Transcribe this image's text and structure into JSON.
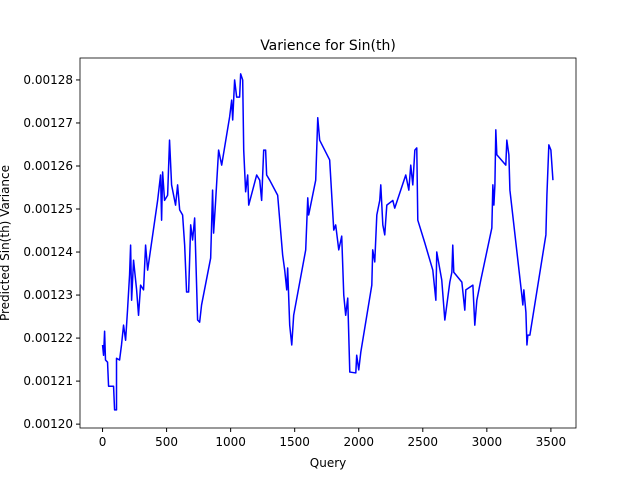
{
  "chart_data": {
    "type": "line",
    "title": "Varience for Sin(th)",
    "x_label": "Query",
    "y_label": "Predicted Sin(th) Variance",
    "xlim": [
      -176,
      3696
    ],
    "ylim": [
      0.0011991,
      0.0012851
    ],
    "xticks": [
      0,
      500,
      1000,
      1500,
      2000,
      2500,
      3000,
      3500
    ],
    "yticks": [
      {
        "value": 0.0012,
        "label": "0.00120"
      },
      {
        "value": 0.00121,
        "label": "0.00121"
      },
      {
        "value": 0.00122,
        "label": "0.00122"
      },
      {
        "value": 0.00123,
        "label": "0.00123"
      },
      {
        "value": 0.00124,
        "label": "0.00124"
      },
      {
        "value": 0.00125,
        "label": "0.00125"
      },
      {
        "value": 0.00126,
        "label": "0.00126"
      },
      {
        "value": 0.00127,
        "label": "0.00127"
      },
      {
        "value": 0.00128,
        "label": "0.00128"
      }
    ],
    "grid": false,
    "x": [
      0,
      8,
      16,
      23,
      39,
      47,
      86,
      94,
      109,
      109,
      133,
      148,
      164,
      180,
      195,
      211,
      219,
      227,
      242,
      266,
      281,
      297,
      320,
      336,
      352,
      430,
      453,
      461,
      469,
      484,
      508,
      523,
      539,
      570,
      586,
      602,
      625,
      641,
      656,
      672,
      688,
      703,
      719,
      742,
      758,
      773,
      844,
      859,
      867,
      883,
      906,
      930,
      992,
      1008,
      1016,
      1031,
      1047,
      1070,
      1078,
      1094,
      1102,
      1117,
      1133,
      1141,
      1203,
      1227,
      1242,
      1258,
      1273,
      1281,
      1305,
      1367,
      1406,
      1422,
      1438,
      1445,
      1461,
      1477,
      1492,
      1586,
      1602,
      1609,
      1664,
      1680,
      1695,
      1773,
      1805,
      1820,
      1844,
      1867,
      1883,
      1898,
      1914,
      1930,
      1977,
      1984,
      2000,
      2016,
      2102,
      2109,
      2125,
      2141,
      2164,
      2172,
      2188,
      2203,
      2219,
      2266,
      2281,
      2367,
      2391,
      2406,
      2422,
      2438,
      2453,
      2461,
      2516,
      2578,
      2602,
      2609,
      2648,
      2672,
      2711,
      2727,
      2734,
      2742,
      2805,
      2828,
      2836,
      2891,
      2906,
      2922,
      2953,
      3039,
      3047,
      3055,
      3063,
      3070,
      3078,
      3148,
      3156,
      3172,
      3180,
      3273,
      3281,
      3289,
      3305,
      3313,
      3320,
      3336,
      3461,
      3469,
      3484,
      3500,
      3516
    ],
    "series": [
      {
        "color": "#0000ff",
        "values": [
          0.0012184,
          0.001216,
          0.0012216,
          0.0012149,
          0.0012144,
          0.0012088,
          0.0012088,
          0.0012033,
          0.0012033,
          0.0012153,
          0.0012149,
          0.0012184,
          0.001223,
          0.0012195,
          0.0012265,
          0.0012347,
          0.0012416,
          0.0012288,
          0.0012381,
          0.0012312,
          0.0012253,
          0.0012323,
          0.0012312,
          0.0012416,
          0.0012358,
          0.001252,
          0.0012579,
          0.0012474,
          0.0012586,
          0.001252,
          0.0012532,
          0.001266,
          0.0012556,
          0.0012509,
          0.0012556,
          0.0012498,
          0.0012486,
          0.0012416,
          0.0012307,
          0.0012307,
          0.0012463,
          0.0012428,
          0.0012479,
          0.0012242,
          0.0012237,
          0.0012277,
          0.0012386,
          0.0012544,
          0.0012444,
          0.001252,
          0.0012637,
          0.0012602,
          0.0012714,
          0.0012753,
          0.0012707,
          0.00128,
          0.001276,
          0.001276,
          0.0012814,
          0.00128,
          0.0012637,
          0.001254,
          0.0012579,
          0.0012509,
          0.0012579,
          0.0012567,
          0.001252,
          0.0012637,
          0.0012637,
          0.0012579,
          0.0012567,
          0.0012532,
          0.0012393,
          0.0012358,
          0.0012312,
          0.0012363,
          0.001223,
          0.0012184,
          0.0012253,
          0.0012405,
          0.0012526,
          0.0012486,
          0.0012567,
          0.0012712,
          0.001266,
          0.0012614,
          0.0012451,
          0.0012463,
          0.0012405,
          0.0012437,
          0.00123,
          0.0012253,
          0.0012293,
          0.0012121,
          0.0012119,
          0.001216,
          0.0012126,
          0.0012167,
          0.0012323,
          0.0012405,
          0.0012377,
          0.0012486,
          0.001252,
          0.0012556,
          0.0012463,
          0.001244,
          0.0012509,
          0.001252,
          0.0012502,
          0.0012579,
          0.0012544,
          0.0012602,
          0.0012556,
          0.0012637,
          0.0012642,
          0.0012474,
          0.0012421,
          0.0012358,
          0.0012288,
          0.00124,
          0.0012335,
          0.0012242,
          0.001233,
          0.0012353,
          0.0012416,
          0.0012353,
          0.001233,
          0.0012265,
          0.0012312,
          0.0012323,
          0.001223,
          0.0012288,
          0.0012335,
          0.0012456,
          0.0012556,
          0.0012509,
          0.0012556,
          0.0012684,
          0.0012626,
          0.0012602,
          0.001266,
          0.0012626,
          0.0012544,
          0.00123,
          0.0012277,
          0.0012312,
          0.001226,
          0.0012184,
          0.0012207,
          0.0012207,
          0.001244,
          0.0012533,
          0.0012649,
          0.0012637,
          0.0012567
        ]
      }
    ]
  }
}
